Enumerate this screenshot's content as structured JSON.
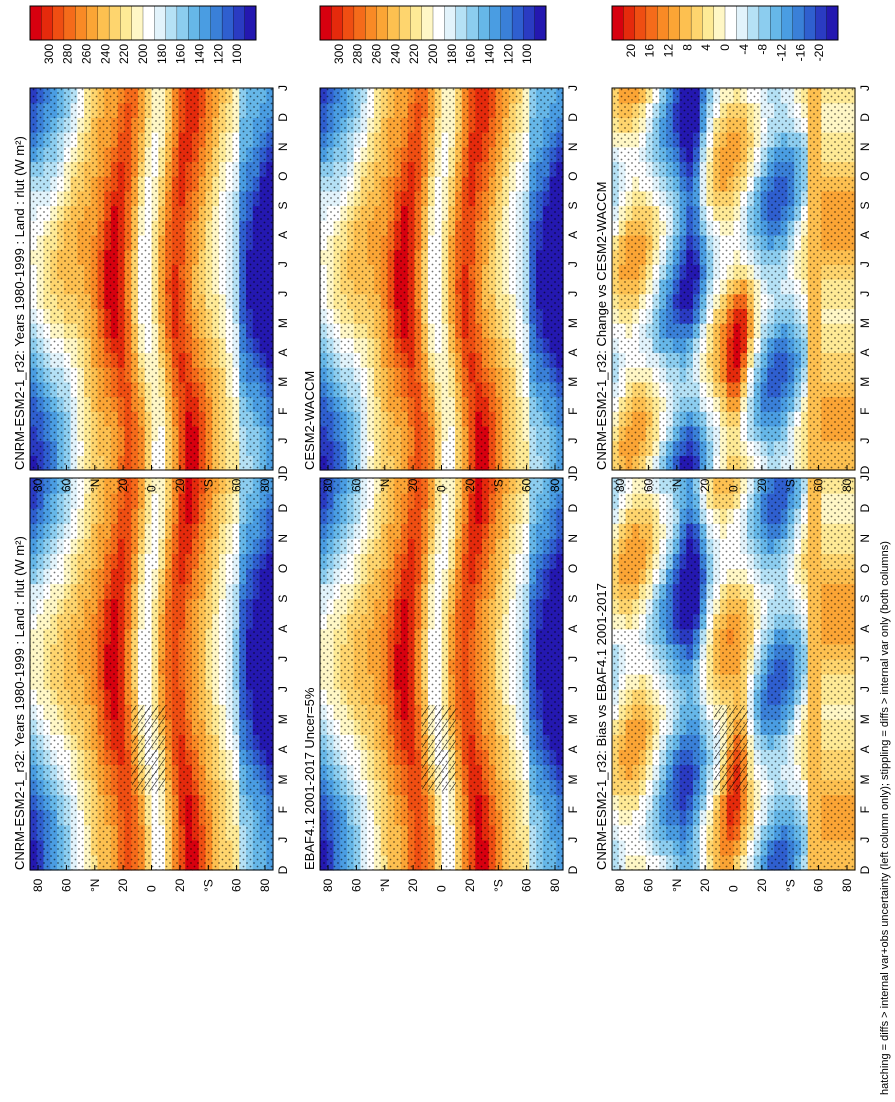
{
  "footnote": "hatching = diffs > internal var+obs uncertainty (left column only); stippling = diffs > internal var only (both columns)",
  "colors": {
    "warm": [
      "#d7000f",
      "#e52a0c",
      "#ef4e12",
      "#f56b1a",
      "#f98a25",
      "#fba535",
      "#fdc050",
      "#fed56e",
      "#feea96",
      "#fff7c6"
    ],
    "cool": [
      "#e2f3fb",
      "#b5e1f5",
      "#8ccdef",
      "#66b7e8",
      "#4a9de2",
      "#3a80d8",
      "#2f5fcf",
      "#2a3bc2",
      "#2418b0"
    ],
    "white": "#ffffff"
  },
  "chart_data": [
    {
      "type": "heatmap",
      "title": "CNRM-ESM2-1_r32: Years 1980-1999 : Land : rlut (W m²)",
      "months": [
        "J",
        "F",
        "M",
        "A",
        "M",
        "J",
        "J",
        "A",
        "S",
        "O",
        "N",
        "D",
        "J"
      ],
      "month_axis_end_labels": [
        "D",
        "J"
      ],
      "lat_ticks": [
        "80",
        "60",
        "°N",
        "20",
        "0",
        "20",
        "°S",
        "60",
        "80"
      ],
      "colorbar_ticks": [
        "300",
        "280",
        "260",
        "240",
        "220",
        "200",
        "180",
        "160",
        "140",
        "120",
        "100"
      ],
      "zlim": [
        100,
        310
      ],
      "kind": "abs",
      "hatching": true
    },
    {
      "type": "heatmap",
      "title": "CNRM-ESM2-1_r32: Years 1980-1999 : Land : rlut (W m²)",
      "months": [
        "J",
        "F",
        "M",
        "A",
        "M",
        "J",
        "J",
        "A",
        "S",
        "O",
        "N",
        "D",
        "J"
      ],
      "month_axis_end_labels": [
        "D",
        "J"
      ],
      "lat_ticks": [
        "80",
        "60",
        "°N",
        "20",
        "0",
        "20",
        "°S",
        "60",
        "80"
      ],
      "colorbar_ticks": [
        "300",
        "280",
        "260",
        "240",
        "220",
        "200",
        "180",
        "160",
        "140",
        "120",
        "100"
      ],
      "zlim": [
        100,
        310
      ],
      "kind": "abs",
      "hatching": false
    },
    {
      "type": "heatmap",
      "title": "EBAF4.1 2001-2017 Uncer=5%",
      "months": [
        "J",
        "F",
        "M",
        "A",
        "M",
        "J",
        "J",
        "A",
        "S",
        "O",
        "N",
        "D",
        "J"
      ],
      "month_axis_end_labels": [
        "D",
        "J"
      ],
      "lat_ticks": [
        "80",
        "60",
        "°N",
        "20",
        "0",
        "20",
        "°S",
        "60",
        "80"
      ],
      "colorbar_ticks": [
        "300",
        "280",
        "260",
        "240",
        "220",
        "200",
        "180",
        "160",
        "140",
        "120",
        "100"
      ],
      "zlim": [
        100,
        310
      ],
      "kind": "abs",
      "hatching": true
    },
    {
      "type": "heatmap",
      "title": "CESM2-WACCM",
      "months": [
        "J",
        "F",
        "M",
        "A",
        "M",
        "J",
        "J",
        "A",
        "S",
        "O",
        "N",
        "D",
        "J"
      ],
      "month_axis_end_labels": [
        "D",
        "J"
      ],
      "lat_ticks": [
        "80",
        "60",
        "°N",
        "20",
        "0",
        "20",
        "°S",
        "60",
        "80"
      ],
      "colorbar_ticks": [
        "300",
        "280",
        "260",
        "240",
        "220",
        "200",
        "180",
        "160",
        "140",
        "120",
        "100"
      ],
      "zlim": [
        100,
        310
      ],
      "kind": "abs",
      "hatching": false
    },
    {
      "type": "heatmap",
      "title": "CNRM-ESM2-1_r32: Bias vs EBAF4.1 2001-2017",
      "months": [
        "J",
        "F",
        "M",
        "A",
        "M",
        "J",
        "J",
        "A",
        "S",
        "O",
        "N",
        "D",
        "J"
      ],
      "month_axis_end_labels": [
        "D",
        "J"
      ],
      "lat_ticks": [
        "80",
        "60",
        "°N",
        "20",
        "0",
        "20",
        "°S",
        "60",
        "80"
      ],
      "colorbar_ticks": [
        "20",
        "16",
        "12",
        "8",
        "4",
        "0",
        "-4",
        "-8",
        "-12",
        "-16",
        "-20"
      ],
      "zlim": [
        -22,
        22
      ],
      "kind": "diff",
      "hatching": true
    },
    {
      "type": "heatmap",
      "title": "CNRM-ESM2-1_r32: Change vs CESM2-WACCM",
      "months": [
        "J",
        "F",
        "M",
        "A",
        "M",
        "J",
        "J",
        "A",
        "S",
        "O",
        "N",
        "D",
        "J"
      ],
      "month_axis_end_labels": [
        "D",
        "J"
      ],
      "lat_ticks": [
        "80",
        "60",
        "°N",
        "20",
        "0",
        "20",
        "°S",
        "60",
        "80"
      ],
      "colorbar_ticks": [
        "20",
        "16",
        "12",
        "8",
        "4",
        "0",
        "-4",
        "-8",
        "-12",
        "-16",
        "-20"
      ],
      "zlim": [
        -22,
        22
      ],
      "kind": "diff",
      "hatching": false
    }
  ]
}
